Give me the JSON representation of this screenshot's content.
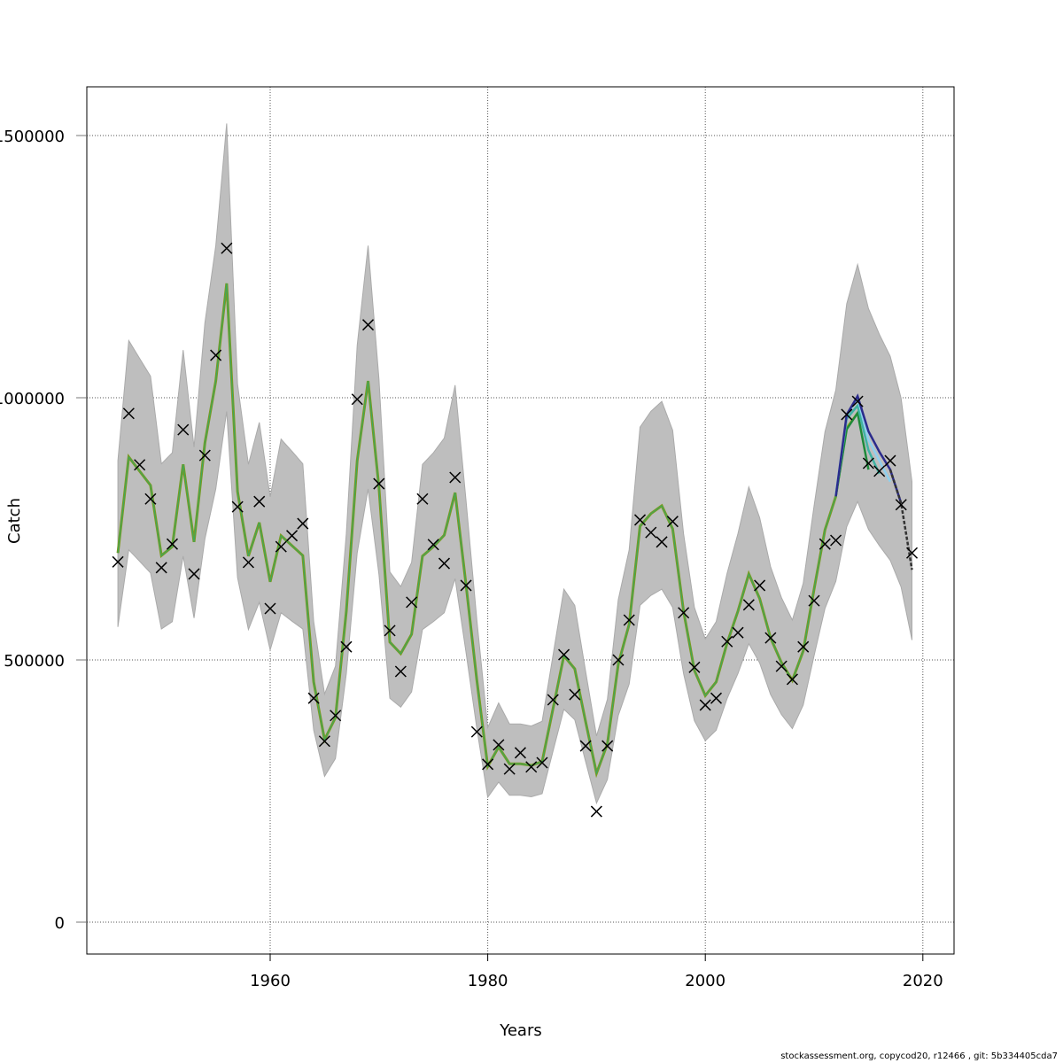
{
  "chart_data": {
    "type": "line",
    "xlabel": "Years",
    "ylabel": "Catch",
    "xlim": [
      1943,
      2023
    ],
    "ylim": [
      -60000,
      1590000
    ],
    "x_ticks": [
      1960,
      1980,
      2000,
      2020
    ],
    "x_tick_labels": [
      "1960",
      "1980",
      "2000",
      "2020"
    ],
    "y_ticks": [
      0,
      500000,
      1000000,
      1500000
    ],
    "y_tick_labels": [
      "0",
      "500000",
      "1000000",
      "1500000"
    ],
    "grid": true,
    "years": [
      1946,
      1947,
      1948,
      1949,
      1950,
      1951,
      1952,
      1953,
      1954,
      1955,
      1956,
      1957,
      1958,
      1959,
      1960,
      1961,
      1962,
      1963,
      1964,
      1965,
      1966,
      1967,
      1968,
      1969,
      1970,
      1971,
      1972,
      1973,
      1974,
      1975,
      1976,
      1977,
      1978,
      1979,
      1980,
      1981,
      1982,
      1983,
      1984,
      1985,
      1986,
      1987,
      1988,
      1989,
      1990,
      1991,
      1992,
      1993,
      1994,
      1995,
      1996,
      1997,
      1998,
      1999,
      2000,
      2001,
      2002,
      2003,
      2004,
      2005,
      2006,
      2007,
      2008,
      2009,
      2010,
      2011,
      2012,
      2013,
      2014,
      2015,
      2016,
      2017,
      2018,
      2019
    ],
    "observed": [
      687000,
      970000,
      872000,
      807000,
      676000,
      721000,
      939000,
      664000,
      890000,
      1081000,
      1285000,
      792000,
      686000,
      802000,
      598000,
      716000,
      737000,
      760000,
      427000,
      345000,
      394000,
      525000,
      997000,
      1139000,
      836000,
      556000,
      478000,
      610000,
      807000,
      720000,
      684000,
      848000,
      642000,
      363000,
      301000,
      338000,
      292000,
      323000,
      296000,
      304000,
      424000,
      510000,
      434000,
      336000,
      211000,
      336000,
      500000,
      576000,
      767000,
      743000,
      725000,
      764000,
      590000,
      486000,
      414000,
      427000,
      535000,
      552000,
      605000,
      642000,
      542000,
      488000,
      463000,
      525000,
      613000,
      721000,
      728000,
      968000,
      993000,
      875000,
      860000,
      880000,
      796000,
      704000
    ],
    "fitted": [
      704000,
      887000,
      860000,
      833000,
      699000,
      716000,
      873000,
      725000,
      914000,
      1032000,
      1218000,
      821000,
      698000,
      762000,
      649000,
      737000,
      718000,
      699000,
      458000,
      348000,
      390000,
      593000,
      880000,
      1032000,
      829000,
      534000,
      512000,
      549000,
      698000,
      716000,
      738000,
      819000,
      644000,
      461000,
      297000,
      334000,
      302000,
      302000,
      299000,
      306000,
      407000,
      508000,
      483000,
      382000,
      284000,
      340000,
      492000,
      568000,
      755000,
      779000,
      794000,
      750000,
      593000,
      480000,
      432000,
      458000,
      532000,
      593000,
      664000,
      617000,
      542000,
      495000,
      461000,
      517000,
      635000,
      748000,
      812000,
      943000,
      1003000,
      936000,
      897000,
      863000,
      799000,
      672000
    ],
    "ci_upper": [
      880000,
      1109000,
      1075000,
      1041000,
      874000,
      895000,
      1091000,
      906000,
      1143000,
      1290000,
      1523000,
      1026000,
      873000,
      953000,
      811000,
      921000,
      898000,
      874000,
      573000,
      435000,
      488000,
      741000,
      1100000,
      1290000,
      1036000,
      668000,
      640000,
      686000,
      873000,
      895000,
      923000,
      1024000,
      805000,
      576000,
      371000,
      418000,
      378000,
      378000,
      374000,
      383000,
      509000,
      635000,
      604000,
      478000,
      355000,
      425000,
      615000,
      710000,
      944000,
      974000,
      993000,
      938000,
      741000,
      600000,
      540000,
      573000,
      665000,
      741000,
      830000,
      771000,
      678000,
      619000,
      576000,
      646000,
      794000,
      935000,
      1015000,
      1179000,
      1254000,
      1170000,
      1121000,
      1079000,
      999000,
      840000
    ],
    "ci_lower": [
      563000,
      710000,
      688000,
      666000,
      559000,
      573000,
      698000,
      580000,
      731000,
      826000,
      974000,
      657000,
      558000,
      610000,
      519000,
      590000,
      574000,
      559000,
      366000,
      278000,
      312000,
      474000,
      704000,
      826000,
      663000,
      427000,
      410000,
      439000,
      558000,
      573000,
      590000,
      655000,
      515000,
      369000,
      238000,
      267000,
      242000,
      242000,
      239000,
      245000,
      326000,
      406000,
      386000,
      306000,
      227000,
      272000,
      394000,
      454000,
      604000,
      623000,
      635000,
      600000,
      474000,
      384000,
      346000,
      366000,
      426000,
      474000,
      531000,
      494000,
      434000,
      396000,
      369000,
      414000,
      508000,
      598000,
      650000,
      754000,
      802000,
      749000,
      718000,
      690000,
      639000,
      538000
    ],
    "retro_series": [
      {
        "color": "#a8a820",
        "years": [
          2012,
          2013,
          2014
        ],
        "values": [
          812000,
          943000,
          971000
        ],
        "dashed": false
      },
      {
        "color": "#1f8a3a",
        "years": [
          2012,
          2013,
          2014,
          2015
        ],
        "values": [
          812000,
          940000,
          971000,
          863000
        ],
        "dashed": false
      },
      {
        "color": "#3fb3a3",
        "years": [
          2012,
          2013,
          2014,
          2015,
          2016
        ],
        "values": [
          815000,
          960000,
          985000,
          900000,
          855000
        ],
        "dashed": false
      },
      {
        "color": "#8fd0ee",
        "years": [
          2012,
          2013,
          2014,
          2015,
          2016,
          2017
        ],
        "values": [
          815000,
          965000,
          1000000,
          920000,
          880000,
          840000
        ],
        "dashed": false
      },
      {
        "color": "#2b2b8c",
        "years": [
          2012,
          2013,
          2014,
          2015,
          2016,
          2017,
          2018
        ],
        "values": [
          812000,
          968000,
          1003000,
          936000,
          897000,
          863000,
          799000
        ],
        "dashed": false
      },
      {
        "color": "#333333",
        "years": [
          2017,
          2018,
          2019
        ],
        "values": [
          863000,
          799000,
          672000
        ],
        "dashed": true
      }
    ],
    "colors": {
      "band": "#bebebe",
      "fit": "#7a9a20",
      "observed_marker": "#000000",
      "grid": "#555555"
    }
  },
  "footer": "stockassessment.org, copycod20, r12466 , git: 5b334405cda7"
}
